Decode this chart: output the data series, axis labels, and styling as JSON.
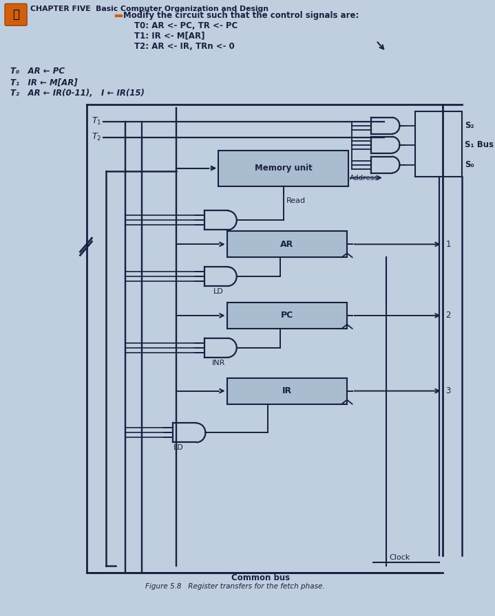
{
  "bg_color": "#bfcfe0",
  "title_text": "CHAPTER FIVE  Basic Computer Organization and Design",
  "problem_icon_color": "#d06010",
  "problem_text": "Modify the circuit such that the control signals are:",
  "t0_text": "T0: AR <- PC, TR <- PC",
  "t1_text": "T1: IR <- M[AR]",
  "t2_text": "T2: AR <- IR, TRn <- 0",
  "left_t0": "T₀   AR ← PC",
  "left_t1": "T₁   IR ← M[AR]",
  "left_t2": "T₂   AR ← IR(0-11),   I ← IR(15)",
  "sig1_label": "S₂",
  "sig2_label": "S₁ Bus",
  "sig3_label": "S₀",
  "line_color": "#1a2040",
  "register_face": "#aabdd0",
  "right_box_face": "#c0d0e0"
}
